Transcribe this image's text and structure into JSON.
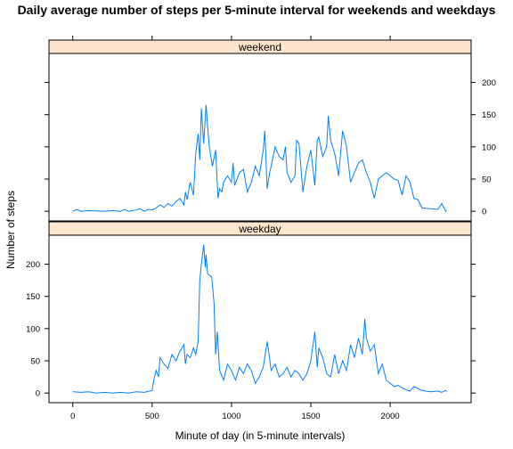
{
  "chart_data": {
    "type": "line",
    "title": "Daily average number of steps per 5-minute interval for weekends and weekdays",
    "xlabel": "Minute of day (in 5-minute intervals)",
    "ylabel": "Number of steps",
    "xlim": [
      -150,
      2510
    ],
    "ylim": [
      -15,
      245
    ],
    "x_ticks": [
      0,
      500,
      1000,
      1500,
      2000
    ],
    "y_ticks": [
      0,
      50,
      100,
      150,
      200
    ],
    "grid": false,
    "line_color": "#0080ff",
    "strip_color": "#ffe5cc",
    "panels": [
      {
        "name": "weekend",
        "y_axis_side": "right",
        "x": [
          0,
          25,
          50,
          100,
          200,
          250,
          300,
          325,
          350,
          400,
          425,
          450,
          475,
          500,
          525,
          550,
          575,
          600,
          625,
          650,
          675,
          700,
          710,
          720,
          740,
          760,
          775,
          790,
          800,
          810,
          825,
          840,
          850,
          860,
          880,
          900,
          915,
          925,
          940,
          950,
          975,
          1000,
          1010,
          1020,
          1050,
          1075,
          1100,
          1125,
          1150,
          1175,
          1200,
          1210,
          1225,
          1240,
          1250,
          1275,
          1300,
          1325,
          1340,
          1350,
          1375,
          1400,
          1410,
          1425,
          1450,
          1475,
          1500,
          1525,
          1540,
          1550,
          1575,
          1600,
          1610,
          1625,
          1650,
          1675,
          1700,
          1725,
          1750,
          1775,
          1800,
          1825,
          1850,
          1875,
          1900,
          1925,
          1950,
          1975,
          2000,
          2025,
          2050,
          2075,
          2100,
          2125,
          2150,
          2175,
          2200,
          2250,
          2300,
          2325,
          2350,
          2355
        ],
        "values": [
          0,
          3,
          0,
          1,
          0,
          1,
          0,
          3,
          0,
          2,
          4,
          0,
          3,
          2,
          5,
          10,
          6,
          12,
          8,
          15,
          20,
          10,
          30,
          18,
          45,
          25,
          90,
          120,
          80,
          160,
          105,
          165,
          130,
          100,
          70,
          95,
          20,
          35,
          30,
          45,
          55,
          45,
          75,
          40,
          60,
          65,
          30,
          45,
          70,
          55,
          95,
          125,
          35,
          60,
          70,
          100,
          85,
          80,
          100,
          60,
          45,
          55,
          110,
          105,
          30,
          70,
          95,
          40,
          110,
          115,
          85,
          100,
          148,
          110,
          90,
          55,
          125,
          100,
          45,
          60,
          75,
          80,
          60,
          45,
          20,
          50,
          55,
          60,
          55,
          50,
          48,
          25,
          55,
          45,
          20,
          18,
          5,
          4,
          3,
          12,
          0,
          2
        ]
      },
      {
        "name": "weekday",
        "y_axis_side": "left",
        "x": [
          0,
          50,
          100,
          150,
          200,
          250,
          300,
          350,
          400,
          450,
          500,
          510,
          525,
          540,
          550,
          575,
          600,
          625,
          650,
          675,
          700,
          710,
          720,
          740,
          760,
          775,
          790,
          800,
          810,
          825,
          835,
          840,
          850,
          875,
          890,
          900,
          910,
          925,
          950,
          975,
          1000,
          1025,
          1050,
          1075,
          1100,
          1125,
          1150,
          1175,
          1200,
          1225,
          1250,
          1275,
          1300,
          1325,
          1350,
          1375,
          1400,
          1425,
          1450,
          1475,
          1500,
          1525,
          1540,
          1550,
          1575,
          1600,
          1625,
          1650,
          1675,
          1700,
          1725,
          1750,
          1775,
          1800,
          1825,
          1840,
          1850,
          1875,
          1900,
          1925,
          1950,
          1975,
          2000,
          2025,
          2050,
          2075,
          2100,
          2125,
          2150,
          2200,
          2250,
          2300,
          2325,
          2350,
          2355
        ],
        "values": [
          2,
          1,
          2,
          0,
          1,
          0,
          1,
          0,
          2,
          1,
          4,
          20,
          35,
          25,
          55,
          45,
          38,
          60,
          50,
          65,
          75,
          45,
          60,
          55,
          70,
          60,
          80,
          175,
          200,
          230,
          195,
          215,
          185,
          180,
          140,
          60,
          95,
          35,
          20,
          45,
          35,
          20,
          40,
          30,
          45,
          35,
          15,
          25,
          40,
          80,
          35,
          45,
          25,
          30,
          40,
          25,
          35,
          30,
          20,
          30,
          50,
          95,
          40,
          70,
          55,
          30,
          25,
          60,
          30,
          50,
          35,
          75,
          55,
          85,
          60,
          115,
          85,
          65,
          75,
          30,
          45,
          20,
          15,
          10,
          12,
          8,
          5,
          3,
          10,
          4,
          2,
          3,
          1,
          4,
          2
        ]
      }
    ]
  }
}
